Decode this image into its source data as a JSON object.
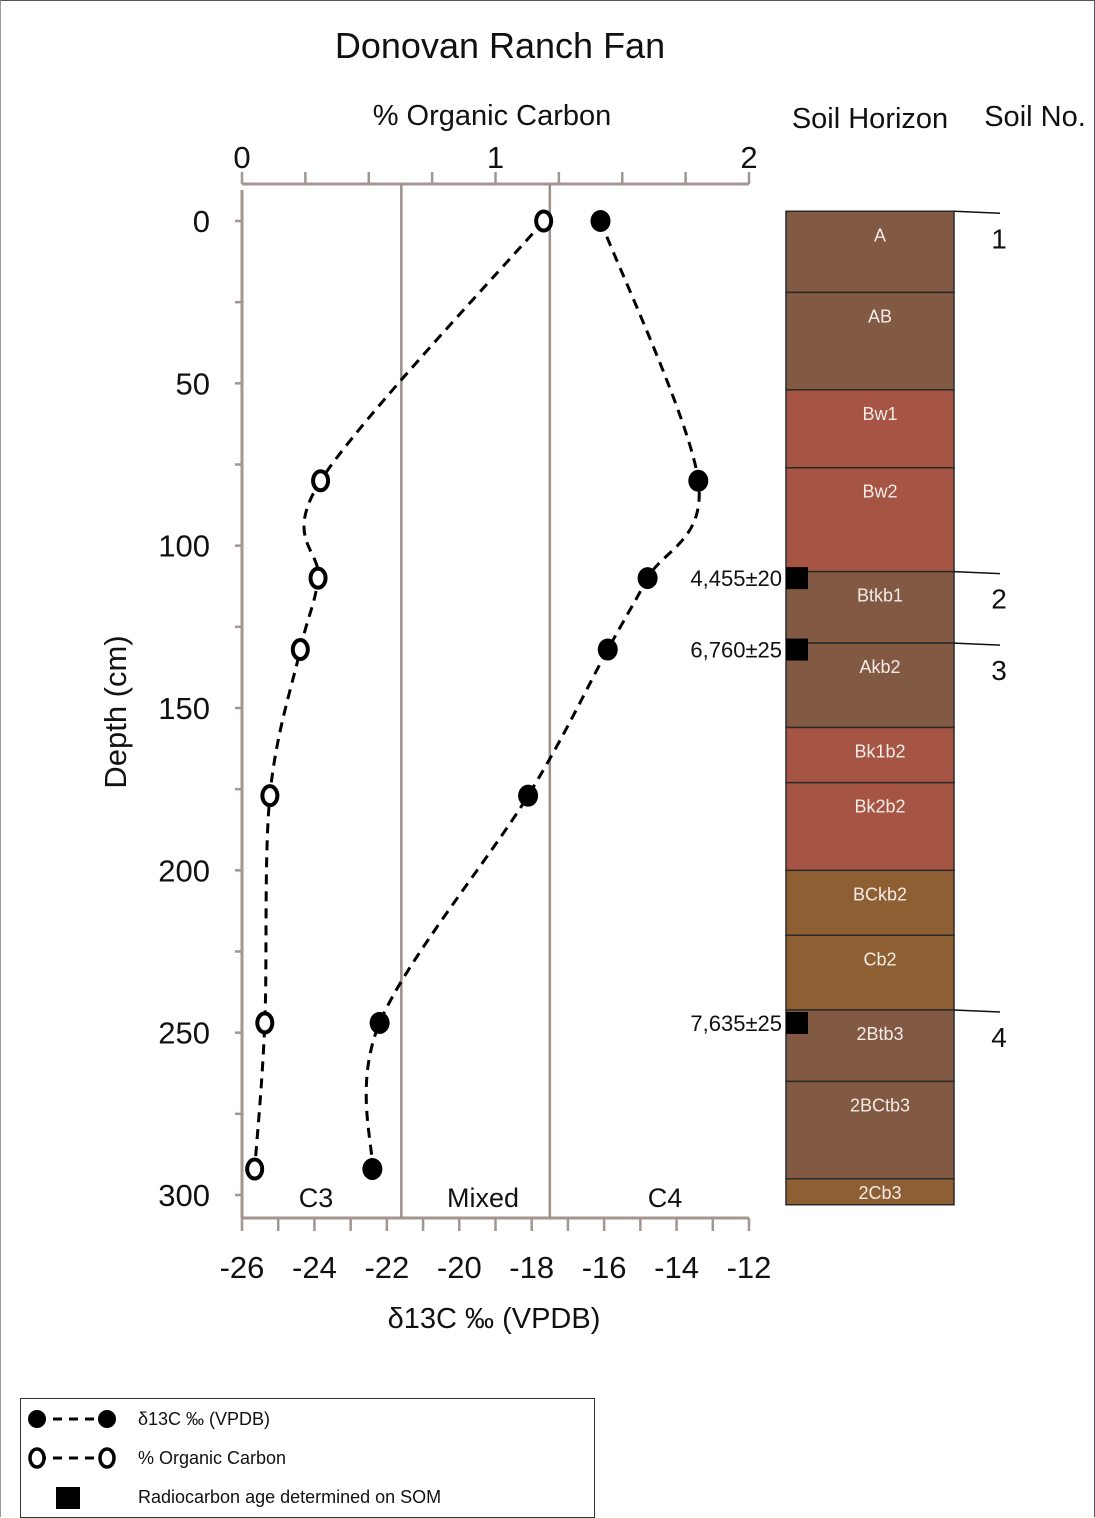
{
  "chart_data": {
    "type": "line",
    "title": "Donovan Ranch Fan",
    "top_axis": {
      "label": "% Organic Carbon",
      "range": [
        0,
        2
      ],
      "ticks": [
        0,
        1,
        2
      ]
    },
    "bottom_axis": {
      "label": "δ13C  ‰ (VPDB)",
      "range": [
        -26,
        -12
      ],
      "ticks": [
        -26,
        -24,
        -22,
        -20,
        -18,
        -16,
        -14,
        -12
      ]
    },
    "y_axis": {
      "label": "Depth (cm)",
      "range": [
        0,
        300
      ],
      "inverted": true,
      "ticks": [
        0,
        50,
        100,
        150,
        200,
        250,
        300
      ]
    },
    "zone_boundaries": [
      -21.6,
      -17.5
    ],
    "zones": [
      "C3",
      "Mixed",
      "C4"
    ],
    "series": [
      {
        "name": "δ13C  ‰ (VPDB)",
        "axis": "bottom",
        "marker": "filled-circle",
        "x": [
          -16.1,
          -13.4,
          -14.8,
          -15.9,
          -18.1,
          -22.2,
          -22.4
        ],
        "y": [
          0,
          80,
          110,
          132,
          177,
          247,
          292
        ]
      },
      {
        "name": "% Organic Carbon",
        "axis": "top",
        "marker": "open-circle",
        "x": [
          1.19,
          0.31,
          0.3,
          0.23,
          0.11,
          0.09,
          0.05
        ],
        "y": [
          0,
          80,
          110,
          132,
          177,
          247,
          292
        ]
      }
    ]
  },
  "soil_column": {
    "header_horizon": "Soil Horizon",
    "header_number": "Soil No.",
    "horizons": [
      {
        "name": "A",
        "top": -3,
        "bottom": 22,
        "color": "#825a43"
      },
      {
        "name": "AB",
        "top": 22,
        "bottom": 52,
        "color": "#825a43"
      },
      {
        "name": "Bw1",
        "top": 52,
        "bottom": 76,
        "color": "#a65544"
      },
      {
        "name": "Bw2",
        "top": 76,
        "bottom": 108,
        "color": "#a65544"
      },
      {
        "name": "Btkb1",
        "top": 108,
        "bottom": 130,
        "color": "#825a43"
      },
      {
        "name": "Akb2",
        "top": 130,
        "bottom": 156,
        "color": "#825a43"
      },
      {
        "name": "Bk1b2",
        "top": 156,
        "bottom": 173,
        "color": "#a65544"
      },
      {
        "name": "Bk2b2",
        "top": 173,
        "bottom": 200,
        "color": "#a65544"
      },
      {
        "name": "BCkb2",
        "top": 200,
        "bottom": 220,
        "color": "#8e5f33"
      },
      {
        "name": "Cb2",
        "top": 220,
        "bottom": 243,
        "color": "#8e5f33"
      },
      {
        "name": "2Btb3",
        "top": 243,
        "bottom": 265,
        "color": "#825a43"
      },
      {
        "name": "2BCtb3",
        "top": 265,
        "bottom": 295,
        "color": "#825a43"
      },
      {
        "name": "2Cb3",
        "top": 295,
        "bottom": 303,
        "color": "#8e5f33"
      }
    ],
    "soil_numbers": [
      {
        "label": "1",
        "depth": -3
      },
      {
        "label": "2",
        "depth": 108
      },
      {
        "label": "3",
        "depth": 130
      },
      {
        "label": "4",
        "depth": 243
      }
    ],
    "radiocarbon_ages": [
      {
        "label": "4,455±20",
        "depth": 110
      },
      {
        "label": "6,760±25",
        "depth": 132
      },
      {
        "label": "7,635±25",
        "depth": 247
      }
    ]
  },
  "legend": {
    "items": [
      {
        "label": "δ13C  ‰ (VPDB)",
        "symbol": "filled-circle-dashed"
      },
      {
        "label": "% Organic Carbon",
        "symbol": "open-circle-dashed"
      },
      {
        "label": "Radiocarbon age determined on SOM",
        "symbol": "filled-square"
      }
    ]
  },
  "colors": {
    "axis": "#a39590",
    "zone_line": "#9c8f8a",
    "series": "#000000"
  }
}
